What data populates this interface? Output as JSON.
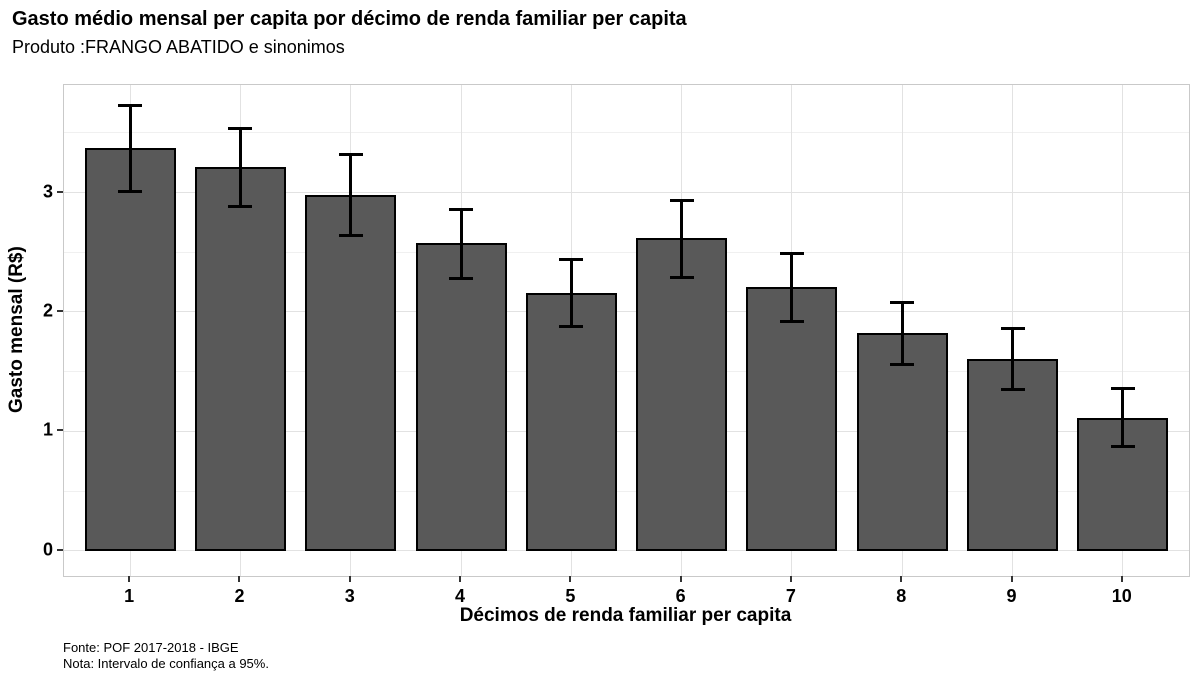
{
  "header": {
    "title": "Gasto médio mensal per capita por décimo de renda familiar per capita",
    "subtitle": "Produto :FRANGO ABATIDO e sinonimos"
  },
  "chart_data": {
    "type": "bar",
    "title": "Gasto médio mensal per capita por décimo de renda familiar per capita",
    "subtitle": "Produto :FRANGO ABATIDO e sinonimos",
    "categories": [
      "1",
      "2",
      "3",
      "4",
      "5",
      "6",
      "7",
      "8",
      "9",
      "10"
    ],
    "values": [
      3.37,
      3.21,
      2.98,
      2.58,
      2.16,
      2.62,
      2.21,
      1.82,
      1.61,
      1.11
    ],
    "error_low": [
      3.01,
      2.88,
      2.64,
      2.28,
      1.88,
      2.29,
      1.92,
      1.56,
      1.35,
      0.87
    ],
    "error_high": [
      3.73,
      3.54,
      3.32,
      2.86,
      2.44,
      2.93,
      2.49,
      2.08,
      1.86,
      1.36
    ],
    "xlabel": "Décimos de renda familiar per capita",
    "ylabel": "Gasto mensal (R$)",
    "ylim": [
      -0.21,
      3.9
    ],
    "yticks": [
      0,
      1,
      2,
      3
    ],
    "y_minor_ticks": [
      0.5,
      1.5,
      2.5,
      3.5
    ],
    "grid": "major-and-minor",
    "legend_position": "none",
    "bar_fill_color": "#595959",
    "bar_border_color": "#000000",
    "error_bar_color": "#000000",
    "error_bar_note": "95% confidence interval"
  },
  "footer": {
    "source": "Fonte: POF 2017-2018 - IBGE",
    "note": "Nota: Intervalo de confiança a 95%."
  }
}
